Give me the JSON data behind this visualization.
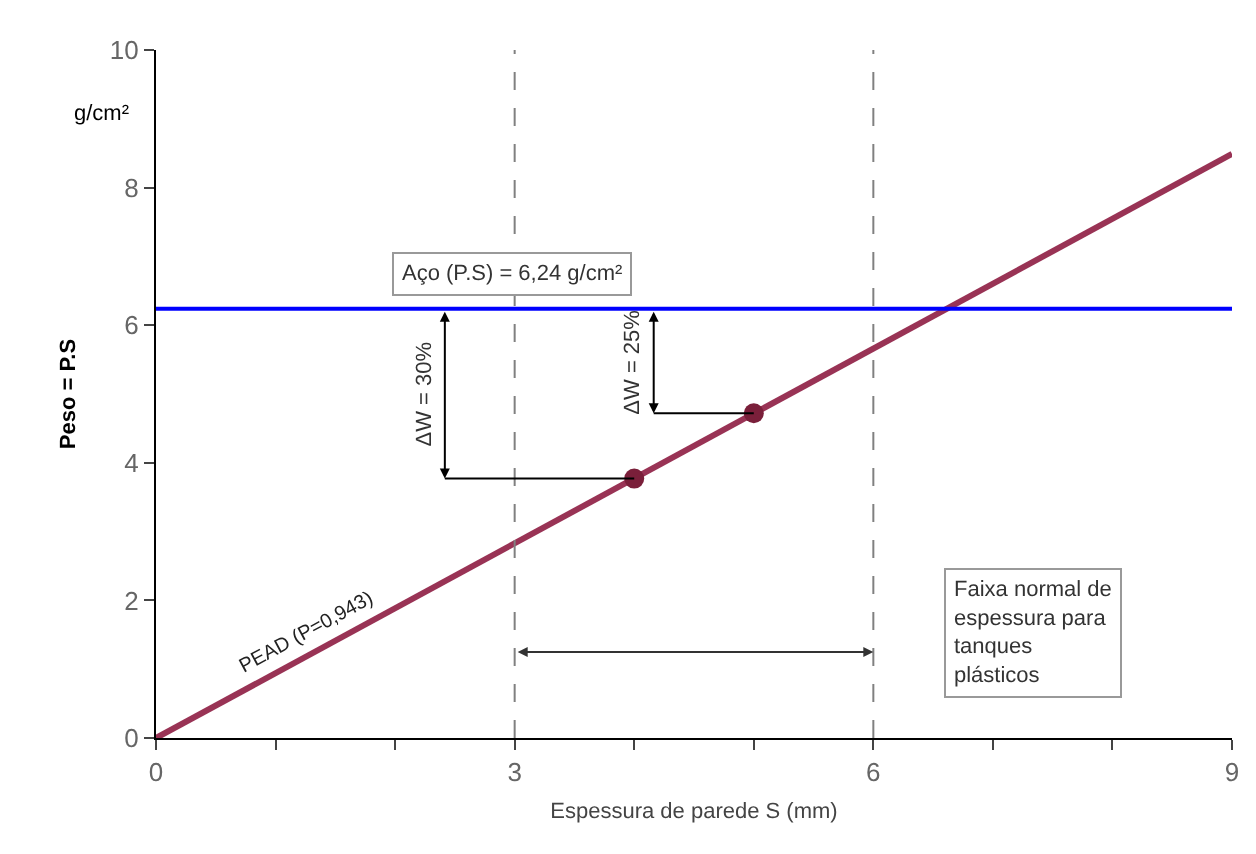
{
  "chart_data": {
    "type": "line",
    "xlabel": "Espessura de parede S (mm)",
    "ylabel": "Peso = P.S",
    "xlim": [
      0,
      9
    ],
    "ylim": [
      0,
      10
    ],
    "xticks": [
      0,
      {
        "value": 1,
        "label": null
      },
      {
        "value": 2,
        "label": null
      },
      3,
      {
        "value": 4,
        "label": null
      },
      {
        "value": 5,
        "label": null
      },
      6,
      {
        "value": 7,
        "label": null
      },
      {
        "value": 8,
        "label": null
      },
      9
    ],
    "yticks": [
      0,
      2,
      4,
      6,
      8,
      10
    ],
    "grid": false,
    "legend": false,
    "series": [
      {
        "name": "PEAD (P=0,943)",
        "color": "#993355",
        "x": [
          0,
          9
        ],
        "values": [
          0,
          8.49
        ],
        "marker": "none"
      },
      {
        "type": "scatter",
        "color": "#7a1f3a",
        "x": [
          4,
          5
        ],
        "values": [
          3.77,
          4.72
        ],
        "marker": "circle"
      }
    ],
    "ref_lines": [
      {
        "axis": "y",
        "value": 6.24,
        "label": "Aço (P.S) = 6,24 g/cm²",
        "color": "#0000ff",
        "line_style": "solid"
      },
      {
        "axis": "x",
        "value": 3,
        "label": null,
        "color": "#808080",
        "line_style": "dashed"
      },
      {
        "axis": "x",
        "value": 6,
        "label": null,
        "color": "#808080",
        "line_style": "dashed"
      }
    ],
    "annotations": [
      "ΔW = 30%",
      "ΔW = 25%",
      "Faixa normal de espessura para tanques plásticos",
      "g/cm²"
    ]
  }
}
